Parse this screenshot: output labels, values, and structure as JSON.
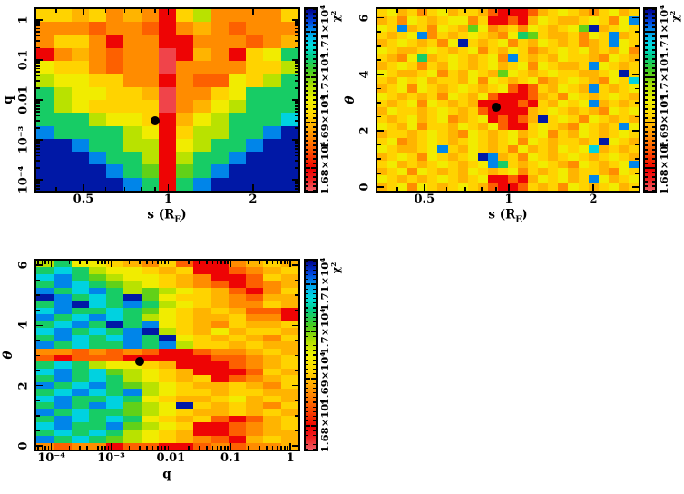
{
  "figure": {
    "background": "#ffffff",
    "marker_color": "#000000",
    "frame_color": "#000000"
  },
  "colormap": {
    "domain": [
      16750,
      17150
    ],
    "stops": [
      [
        0.0,
        "#f25c66"
      ],
      [
        0.06,
        "#ee2222"
      ],
      [
        0.12,
        "#ee0000"
      ],
      [
        0.25,
        "#ff6a00"
      ],
      [
        0.33,
        "#ffa000"
      ],
      [
        0.42,
        "#ffd800"
      ],
      [
        0.5,
        "#eef000"
      ],
      [
        0.58,
        "#aade00"
      ],
      [
        0.66,
        "#44cc22"
      ],
      [
        0.74,
        "#00cc88"
      ],
      [
        0.8,
        "#00dddd"
      ],
      [
        0.87,
        "#00a0ee"
      ],
      [
        0.93,
        "#0044dd"
      ],
      [
        1.0,
        "#000088"
      ]
    ]
  },
  "levels": {
    "0": 16760,
    "1": 16795,
    "2": 16845,
    "3": 16870,
    "4": 16895,
    "5": 16915,
    "6": 16945,
    "7": 16975,
    "8": 17005,
    "9": 17035,
    "a": 17075,
    "b": 17105,
    "c": 17140
  },
  "colorbar": {
    "title": "χ²",
    "minor_step": 10,
    "ticks": [
      {
        "v": 16800,
        "label": "1.68×10⁴"
      },
      {
        "v": 16900,
        "label": "1.69×10⁴"
      },
      {
        "v": 17000,
        "label": "1.7×10⁴"
      },
      {
        "v": 17100,
        "label": "1.71×10⁴"
      }
    ]
  },
  "chart_data": [
    {
      "id": "q-vs-s",
      "type": "heatmap",
      "xlabel": {
        "pre": "s (R",
        "sub": "E",
        "post": ")"
      },
      "ylabel": "q",
      "x": {
        "scale": "log",
        "range": [
          0.34,
          2.9
        ],
        "ticks": [
          {
            "v": 0.5,
            "label": "0.5"
          },
          {
            "v": 1,
            "label": "1"
          },
          {
            "v": 2,
            "label": "2"
          }
        ]
      },
      "y": {
        "scale": "log",
        "range": [
          5.4e-05,
          1.85
        ],
        "ticks": [
          {
            "v": 1,
            "label": "1"
          },
          {
            "v": 0.1,
            "label": "0.1"
          },
          {
            "v": 0.01,
            "label": "0.01"
          },
          {
            "v": 0.001,
            "label": "10⁻³"
          },
          {
            "v": 0.0001,
            "label": "10⁻⁴"
          }
        ]
      },
      "best_fit": {
        "x": 0.9,
        "y": 0.003
      },
      "grid_rows": [
        "554534315733335",
        "333233213432333",
        "355313311333234",
        "134323301431569",
        "655323303333557",
        "766553313226579",
        "976655403356999",
        "976555503467999",
        "99976651467999a",
        "b999976157799bc",
        "ccb997716799bcc",
        "cccb9971799bccc",
        "ccccb98189bcccc",
        "cccccb919bccccc"
      ]
    },
    {
      "id": "theta-vs-s",
      "type": "heatmap",
      "xlabel": {
        "pre": "s (R",
        "sub": "E",
        "post": ")"
      },
      "ylabel": "θ",
      "x": {
        "scale": "log",
        "range": [
          0.34,
          2.9
        ],
        "ticks": [
          {
            "v": 0.5,
            "label": "0.5"
          },
          {
            "v": 1,
            "label": "1"
          },
          {
            "v": 2,
            "label": "2"
          }
        ]
      },
      "y": {
        "scale": "linear",
        "range": [
          -0.12,
          6.31
        ],
        "ticks": [
          {
            "v": 0,
            "label": "0"
          },
          {
            "v": 2,
            "label": "2"
          },
          {
            "v": 4,
            "label": "4"
          },
          {
            "v": 6,
            "label": "6"
          }
        ]
      },
      "best_fit": {
        "x": 0.9,
        "y": 2.85
      },
      "grid_rows": [
        "56453564554211124565435645",
        "4536545663511214654456536b",
        "65b453654863453654568c4565",
        "5456b354565436985445365b45",
        "45654536c54563546545345b65",
        "65445654563546534565645463",
        "5436945654563b545465543654",
        "456535465456456365445b6545",
        "654456354654865456554456c5",
        "5465645546365456345654365a",
        "456365456545621254654b5456",
        "65454536546211124536545654",
        "545636545411112154656b4545",
        "46554565452111145654543656",
        "5456456345612124c565365454",
        "654635546546211565436545b6",
        "45545654365456456354654565",
        "5634565456545636545545c654",
        "654456b54654536454656a4545",
        "4565365456cb45365456545654",
        "56454565456b9545654365456b",
        "45636545465456354564554365",
        "654545654561121465645b6456",
        "45636545654211254536545645"
      ]
    },
    {
      "id": "theta-vs-q",
      "type": "heatmap",
      "xlabel": {
        "pre": "q",
        "sub": "",
        "post": ""
      },
      "ylabel": "θ",
      "x": {
        "scale": "log",
        "range": [
          5.6e-05,
          1.36
        ],
        "ticks": [
          {
            "v": 0.0001,
            "label": "10⁻⁴"
          },
          {
            "v": 0.001,
            "label": "10⁻³"
          },
          {
            "v": 0.01,
            "label": "0.01"
          },
          {
            "v": 0.1,
            "label": "0.1"
          },
          {
            "v": 1,
            "label": "1"
          }
        ]
      },
      "y": {
        "scale": "linear",
        "range": [
          -0.12,
          6.15
        ],
        "ticks": [
          {
            "v": 0,
            "label": "0"
          },
          {
            "v": 2,
            "label": "2"
          },
          {
            "v": 4,
            "label": "4"
          },
          {
            "v": 6,
            "label": "6"
          }
        ]
      },
      "best_fit": {
        "x": 0.003,
        "y": 2.8
      },
      "grid_rows": [
        "796654352113454",
        "9a9766545112345",
        "ab9876654311254",
        "9ba987654321234",
        "b9ab97876542135",
        "cb9a9c865543244",
        "9bca9b976543354",
        "ab99a9865454221",
        "b9aba9765445331",
        "9ab9c9b65435445",
        "ab9a9bc75464554",
        "9ba9ab9c6545435",
        "b9a99b9b7554544",
        "332323211233454",
        "212221111122345",
        "9a9766541112345",
        "ab9a87654111254",
        "9b9a97654512345",
        "b9ab98765445435",
        "9aba9b765545544",
        "ab99a9654456454",
        "9b9ba876c545435",
        "b9a998765445454",
        "9ba9a9654521245",
        "ab99b8765112345",
        "9a9a97654112344",
        "b9a987654321454",
        "323312211232334"
      ]
    }
  ]
}
